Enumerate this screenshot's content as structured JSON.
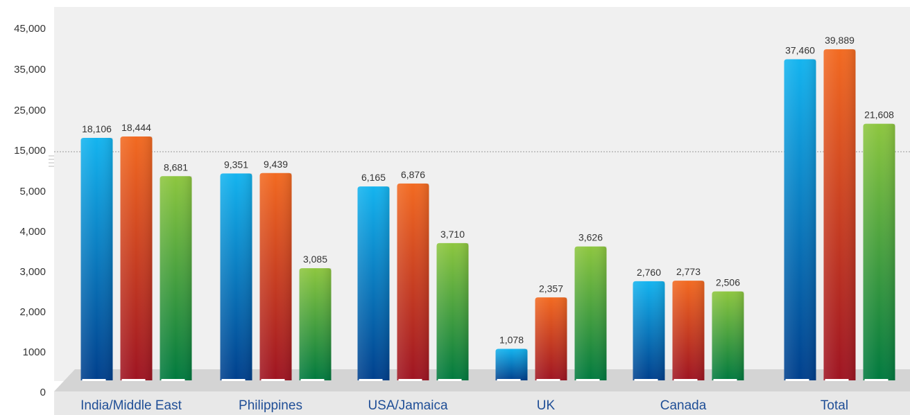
{
  "chart_data": {
    "type": "bar",
    "title": "",
    "xlabel": "",
    "ylabel": "",
    "y_ticks": [
      "0",
      "1000",
      "2,000",
      "3,000",
      "4,000",
      "5,000",
      "15,000",
      "25,000",
      "35,000",
      "45,000"
    ],
    "y_tick_values": [
      0,
      1000,
      2000,
      3000,
      4000,
      5000,
      15000,
      25000,
      35000,
      45000
    ],
    "scale_note": "broken axis: linear 0-5,000, then steps of 10,000",
    "grid": false,
    "legend": "none",
    "categories": [
      "India/Middle East",
      "Philippines",
      "USA/Jamaica",
      "UK",
      "Canada",
      "Total"
    ],
    "series": [
      {
        "values": [
          18106,
          9351,
          6165,
          1078,
          2760,
          37460
        ],
        "labels": [
          "18,106",
          "9,351",
          "6,165",
          "1,078",
          "2,760",
          "37,460"
        ]
      },
      {
        "values": [
          18444,
          9439,
          6876,
          2357,
          2773,
          39889
        ],
        "labels": [
          "18,444",
          "9,439",
          "6,876",
          "2,357",
          "2,773",
          "39,889"
        ]
      },
      {
        "values": [
          8681,
          3085,
          3710,
          3626,
          2506,
          21608
        ],
        "labels": [
          "8,681",
          "3,085",
          "3,710",
          "3,626",
          "2,506",
          "21,608"
        ]
      }
    ],
    "colors": {
      "series": [
        {
          "top": "#14b4ef",
          "bottom": "#003f8c"
        },
        {
          "top": "#f26a21",
          "bottom": "#9e1422"
        },
        {
          "top": "#8dc63f",
          "bottom": "#00793f"
        }
      ],
      "plot_bg": "#f0f0f0",
      "floor": "#d4d4d4",
      "category_text": "#1f4e96",
      "dotted_line": "#999999"
    }
  }
}
